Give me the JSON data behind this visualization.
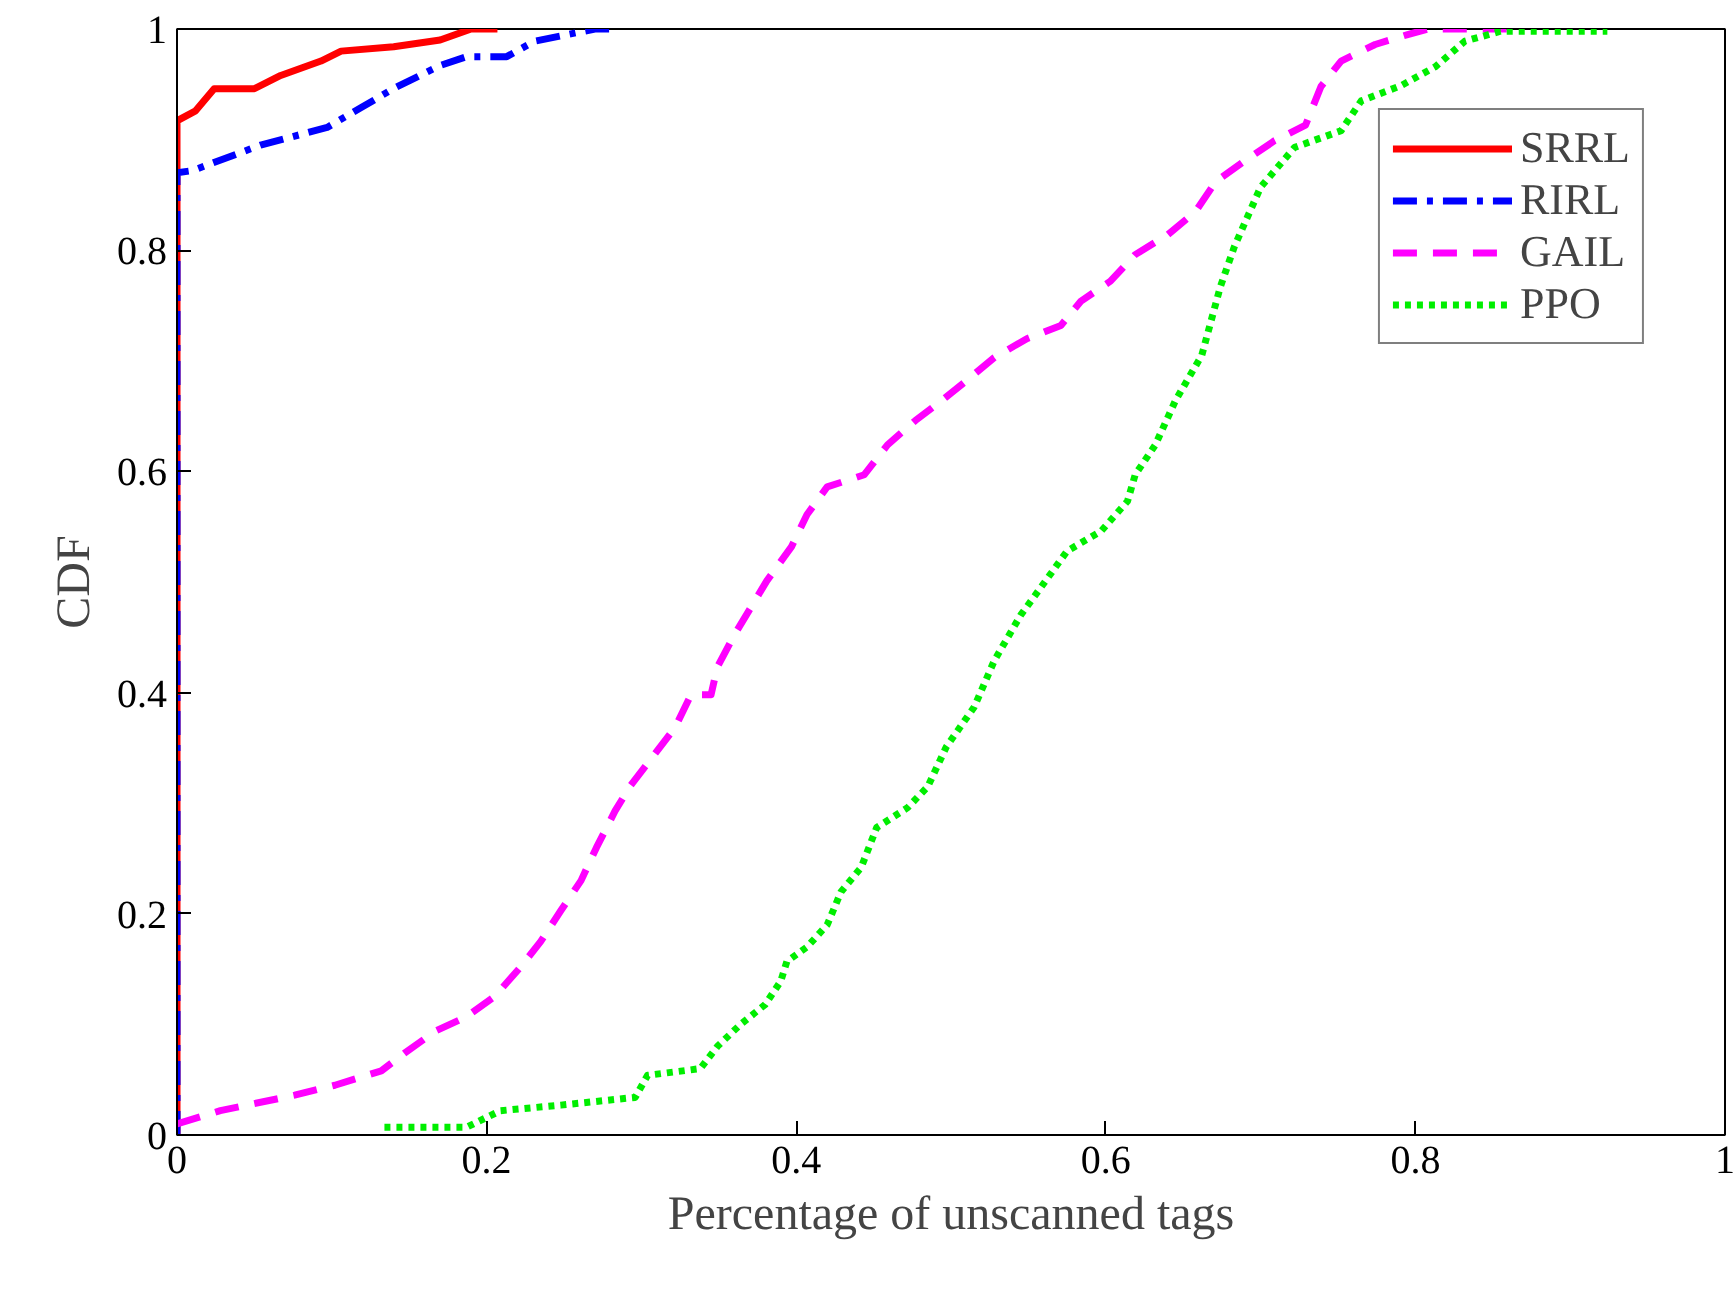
{
  "chart_data": {
    "type": "line",
    "xlabel": "Percentage of unscanned tags",
    "ylabel": "CDF",
    "xlim": [
      0,
      1
    ],
    "ylim": [
      0,
      1
    ],
    "xticks": [
      0,
      {
        "value": 0.2,
        "label": "0.2"
      },
      {
        "value": 0.4,
        "label": "0.4"
      },
      {
        "value": 0.6,
        "label": "0.6"
      },
      {
        "value": 0.8,
        "label": "0.8"
      },
      1
    ],
    "yticks": [
      0,
      {
        "value": 0.2,
        "label": "0.2"
      },
      {
        "value": 0.4,
        "label": "0.4"
      },
      {
        "value": 0.6,
        "label": "0.6"
      },
      {
        "value": 0.8,
        "label": "0.8"
      },
      1
    ],
    "grid": false,
    "legend": "top right",
    "marker": "none",
    "series": [
      {
        "name": "SRRL",
        "color": "#ff0000",
        "line_style": "solid",
        "x": [
          0,
          0,
          0.012,
          0.024,
          0.05,
          0.067,
          0.093,
          0.106,
          0.14,
          0.17,
          0.19,
          0.207
        ],
        "values": [
          0,
          0.917,
          0.926,
          0.946,
          0.946,
          0.958,
          0.971,
          0.98,
          0.984,
          0.99,
          1.0,
          1.0
        ]
      },
      {
        "name": "RIRL",
        "color": "#0000ff",
        "line_style": "dashdot",
        "x": [
          0,
          0,
          0.01,
          0.054,
          0.097,
          0.119,
          0.141,
          0.17,
          0.187,
          0.213,
          0.231,
          0.27,
          0.28
        ],
        "values": [
          0,
          0.87,
          0.872,
          0.895,
          0.911,
          0.929,
          0.947,
          0.967,
          0.975,
          0.975,
          0.989,
          1.0,
          1.0
        ]
      },
      {
        "name": "GAIL",
        "color": "#ff00ff",
        "line_style": "dashed",
        "x": [
          0,
          0.028,
          0.076,
          0.102,
          0.132,
          0.147,
          0.167,
          0.187,
          0.205,
          0.222,
          0.235,
          0.248,
          0.261,
          0.271,
          0.283,
          0.293,
          0.322,
          0.332,
          0.345,
          0.349,
          0.36,
          0.381,
          0.397,
          0.407,
          0.42,
          0.444,
          0.459,
          0.477,
          0.494,
          0.51,
          0.528,
          0.549,
          0.571,
          0.584,
          0.603,
          0.619,
          0.64,
          0.658,
          0.671,
          0.69,
          0.709,
          0.729,
          0.739,
          0.752,
          0.774,
          0.795,
          0.808,
          0.859
        ],
        "values": [
          0.01,
          0.022,
          0.036,
          0.045,
          0.058,
          0.074,
          0.094,
          0.107,
          0.125,
          0.152,
          0.175,
          0.203,
          0.23,
          0.26,
          0.293,
          0.316,
          0.369,
          0.398,
          0.398,
          0.423,
          0.452,
          0.501,
          0.532,
          0.561,
          0.586,
          0.597,
          0.624,
          0.646,
          0.664,
          0.682,
          0.703,
          0.72,
          0.732,
          0.754,
          0.772,
          0.796,
          0.814,
          0.835,
          0.862,
          0.881,
          0.899,
          0.913,
          0.948,
          0.971,
          0.986,
          0.995,
          1.0,
          1.0
        ]
      },
      {
        "name": "PPO",
        "color": "#00ee00",
        "line_style": "dotted",
        "x": [
          0.134,
          0.187,
          0.209,
          0.248,
          0.296,
          0.304,
          0.338,
          0.349,
          0.364,
          0.38,
          0.39,
          0.394,
          0.407,
          0.42,
          0.429,
          0.442,
          0.452,
          0.472,
          0.485,
          0.497,
          0.515,
          0.528,
          0.545,
          0.558,
          0.575,
          0.597,
          0.614,
          0.619,
          0.632,
          0.645,
          0.662,
          0.674,
          0.683,
          0.7,
          0.722,
          0.752,
          0.765,
          0.791,
          0.813,
          0.832,
          0.855,
          0.924
        ],
        "values": [
          0.007,
          0.007,
          0.022,
          0.027,
          0.034,
          0.054,
          0.06,
          0.08,
          0.1,
          0.118,
          0.139,
          0.157,
          0.17,
          0.19,
          0.22,
          0.242,
          0.278,
          0.296,
          0.315,
          0.351,
          0.387,
          0.429,
          0.47,
          0.495,
          0.528,
          0.546,
          0.573,
          0.597,
          0.624,
          0.664,
          0.705,
          0.767,
          0.803,
          0.857,
          0.893,
          0.908,
          0.935,
          0.949,
          0.966,
          0.989,
          0.998,
          0.998
        ]
      }
    ]
  }
}
